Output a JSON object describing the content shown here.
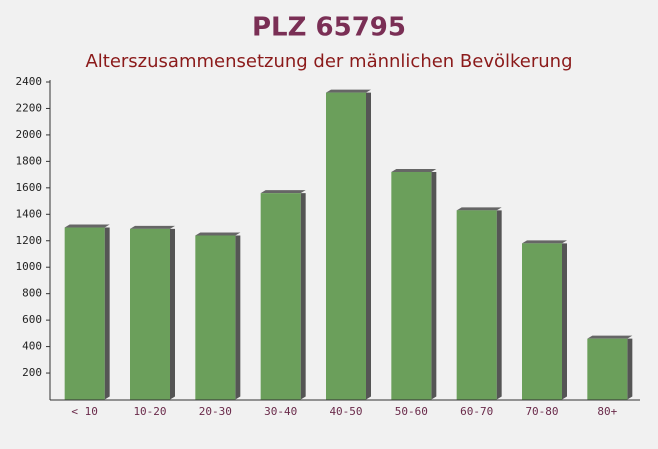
{
  "chart_data": {
    "type": "bar",
    "title": "PLZ 65795",
    "subtitle": "Alterszusammensetzung der männlichen Bevölkerung",
    "categories": [
      "< 10",
      "10-20",
      "20-30",
      "30-40",
      "40-50",
      "50-60",
      "60-70",
      "70-80",
      "80+"
    ],
    "values": [
      1300,
      1290,
      1240,
      1560,
      2320,
      1720,
      1430,
      1180,
      460
    ],
    "color": "#6b9f5b",
    "ylim": [
      0,
      2400
    ],
    "yticks": [
      200,
      400,
      600,
      800,
      1000,
      1200,
      1400,
      1600,
      1800,
      2000,
      2200,
      2400
    ],
    "grid": false
  }
}
